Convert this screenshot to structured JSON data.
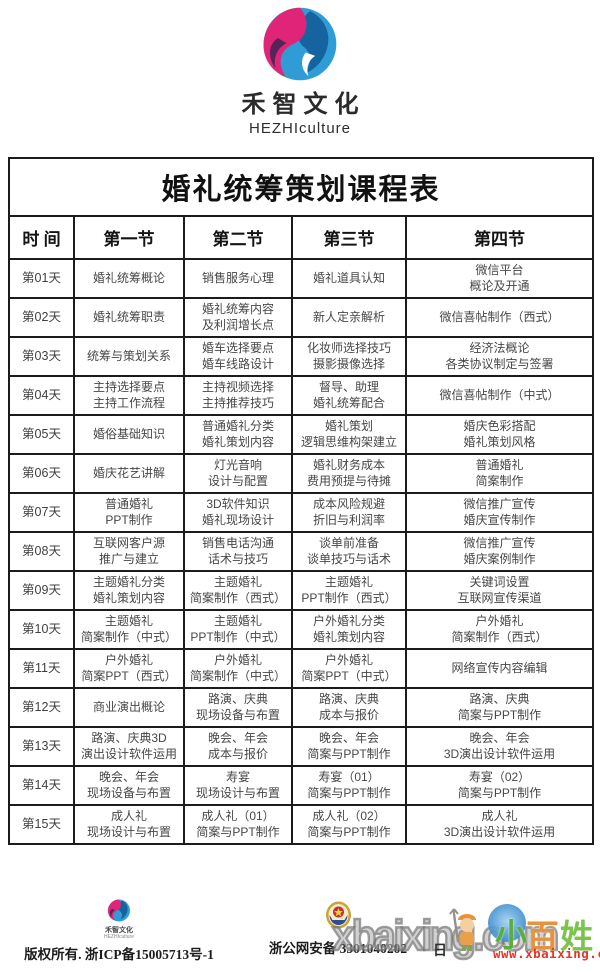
{
  "brand": {
    "name": "禾智文化",
    "subtitle": "HEZHIculture",
    "logo_colors": {
      "pink": "#e02579",
      "purple": "#572458",
      "blue": "#2f9cd6",
      "deep_blue": "#15649f"
    }
  },
  "table": {
    "title": "婚礼统筹策划课程表",
    "headers": [
      "时 间",
      "第一节",
      "第二节",
      "第三节",
      "第四节"
    ],
    "rows": [
      {
        "day": "第01天",
        "cells": [
          [
            "婚礼统筹概论"
          ],
          [
            "销售服务心理"
          ],
          [
            "婚礼道具认知"
          ],
          [
            "微信平台",
            "概论及开通"
          ]
        ]
      },
      {
        "day": "第02天",
        "cells": [
          [
            "婚礼统筹职责"
          ],
          [
            "婚礼统筹内容",
            "及利润增长点"
          ],
          [
            "新人定亲解析"
          ],
          [
            "微信喜帖制作（西式）"
          ]
        ]
      },
      {
        "day": "第03天",
        "cells": [
          [
            "统筹与策划关系"
          ],
          [
            "婚车选择要点",
            "婚车线路设计"
          ],
          [
            "化妆师选择技巧",
            "摄影摄像选择"
          ],
          [
            "经济法概论",
            "各类协议制定与签署"
          ]
        ]
      },
      {
        "day": "第04天",
        "cells": [
          [
            "主持选择要点",
            "主持工作流程"
          ],
          [
            "主持视频选择",
            "主持推荐技巧"
          ],
          [
            "督导、助理",
            "婚礼统筹配合"
          ],
          [
            "微信喜帖制作（中式）"
          ]
        ]
      },
      {
        "day": "第05天",
        "cells": [
          [
            "婚俗基础知识"
          ],
          [
            "普通婚礼分类",
            "婚礼策划内容"
          ],
          [
            "婚礼策划",
            "逻辑思维构架建立"
          ],
          [
            "婚庆色彩搭配",
            "婚礼策划风格"
          ]
        ]
      },
      {
        "day": "第06天",
        "cells": [
          [
            "婚庆花艺讲解"
          ],
          [
            "灯光音响",
            "设计与配置"
          ],
          [
            "婚礼财务成本",
            "费用预提与待摊"
          ],
          [
            "普通婚礼",
            "简案制作"
          ]
        ]
      },
      {
        "day": "第07天",
        "cells": [
          [
            "普通婚礼",
            "PPT制作"
          ],
          [
            "3D软件知识",
            "婚礼现场设计"
          ],
          [
            "成本风险规避",
            "折旧与利润率"
          ],
          [
            "微信推广宣传",
            "婚庆宣传制作"
          ]
        ]
      },
      {
        "day": "第08天",
        "cells": [
          [
            "互联网客户源",
            "推广与建立"
          ],
          [
            "销售电话沟通",
            "话术与技巧"
          ],
          [
            "谈单前准备",
            "谈单技巧与话术"
          ],
          [
            "微信推广宣传",
            "婚庆案例制作"
          ]
        ]
      },
      {
        "day": "第09天",
        "cells": [
          [
            "主题婚礼分类",
            "婚礼策划内容"
          ],
          [
            "主题婚礼",
            "简案制作（西式）"
          ],
          [
            "主题婚礼",
            "PPT制作（西式）"
          ],
          [
            "关键词设置",
            "互联网宣传渠道"
          ]
        ]
      },
      {
        "day": "第10天",
        "cells": [
          [
            "主题婚礼",
            "简案制作（中式）"
          ],
          [
            "主题婚礼",
            "PPT制作（中式）"
          ],
          [
            "户外婚礼分类",
            "婚礼策划内容"
          ],
          [
            "户外婚礼",
            "简案制作（西式）"
          ]
        ]
      },
      {
        "day": "第11天",
        "cells": [
          [
            "户外婚礼",
            "简案PPT（西式）"
          ],
          [
            "户外婚礼",
            "简案制作（中式）"
          ],
          [
            "户外婚礼",
            "简案PPT（中式）"
          ],
          [
            "网络宣传内容编辑"
          ]
        ]
      },
      {
        "day": "第12天",
        "cells": [
          [
            "商业演出概论"
          ],
          [
            "路演、庆典",
            "现场设备与布置"
          ],
          [
            "路演、庆典",
            "成本与报价"
          ],
          [
            "路演、庆典",
            "简案与PPT制作"
          ]
        ]
      },
      {
        "day": "第13天",
        "cells": [
          [
            "路演、庆典3D",
            "演出设计软件运用"
          ],
          [
            "晚会、年会",
            "成本与报价"
          ],
          [
            "晚会、年会",
            "简案与PPT制作"
          ],
          [
            "晚会、年会",
            "3D演出设计软件运用"
          ]
        ]
      },
      {
        "day": "第14天",
        "cells": [
          [
            "晚会、年会",
            "现场设备与布置"
          ],
          [
            "寿宴",
            "现场设计与布置"
          ],
          [
            "寿宴（01）",
            "简案与PPT制作"
          ],
          [
            "寿宴（02）",
            "简案与PPT制作"
          ]
        ]
      },
      {
        "day": "第15天",
        "cells": [
          [
            "成人礼",
            "现场设计与布置"
          ],
          [
            "成人礼（01）",
            "简案与PPT制作"
          ],
          [
            "成人礼（02）",
            "简案与PPT制作"
          ],
          [
            "成人礼",
            "3D演出设计软件运用"
          ]
        ]
      }
    ]
  },
  "footer": {
    "mini_logo_name": "禾智文化",
    "mini_logo_sub": "HEZHIculture",
    "copyright": "版权所有. 浙ICP备15005713号-1",
    "security": "浙公网安备 3301040202",
    "partial_text": "日"
  },
  "watermark": {
    "big_text": "xbaixing.com",
    "url": "www.xbaixing.com",
    "url_color": "#e2352b",
    "logo_chars": [
      "小",
      "百",
      "姓"
    ]
  }
}
